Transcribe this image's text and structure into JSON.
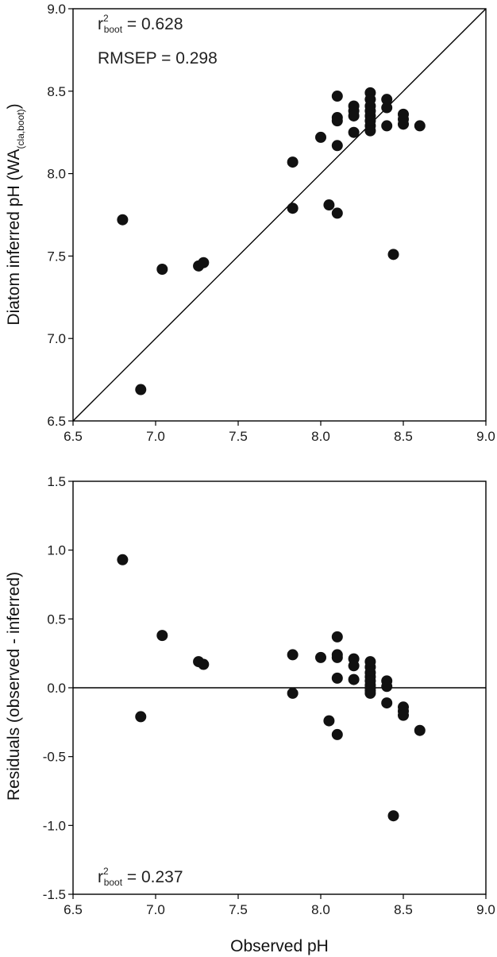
{
  "chart_data": [
    {
      "type": "scatter",
      "xlabel": "",
      "ylabel": "Diatom inferred pH (WA",
      "ylabel_subscript": "(cla,boot)",
      "ylabel_close": ")",
      "xlim": [
        6.5,
        9.0
      ],
      "ylim": [
        6.5,
        9.0
      ],
      "xticks": [
        "6.5",
        "7.0",
        "7.5",
        "8.0",
        "8.5",
        "9.0"
      ],
      "yticks": [
        "6.5",
        "7.0",
        "7.5",
        "8.0",
        "8.5",
        "9.0"
      ],
      "reference_line": "1:1",
      "annotations": {
        "r2_prefix": "r",
        "r2_sup": "2",
        "r2_sub": "boot",
        "r2_value": " = 0.628",
        "rmsep": "RMSEP = 0.298"
      },
      "points": [
        {
          "x": 6.8,
          "y": 7.72
        },
        {
          "x": 6.91,
          "y": 6.69
        },
        {
          "x": 7.04,
          "y": 7.42
        },
        {
          "x": 7.26,
          "y": 7.44
        },
        {
          "x": 7.29,
          "y": 7.46
        },
        {
          "x": 7.83,
          "y": 8.07
        },
        {
          "x": 7.83,
          "y": 7.79
        },
        {
          "x": 8.0,
          "y": 8.22
        },
        {
          "x": 8.05,
          "y": 7.81
        },
        {
          "x": 8.1,
          "y": 8.47
        },
        {
          "x": 8.1,
          "y": 8.34
        },
        {
          "x": 8.1,
          "y": 8.32
        },
        {
          "x": 8.1,
          "y": 8.17
        },
        {
          "x": 8.1,
          "y": 7.76
        },
        {
          "x": 8.2,
          "y": 8.41
        },
        {
          "x": 8.2,
          "y": 8.38
        },
        {
          "x": 8.2,
          "y": 8.35
        },
        {
          "x": 8.2,
          "y": 8.25
        },
        {
          "x": 8.3,
          "y": 8.49
        },
        {
          "x": 8.3,
          "y": 8.45
        },
        {
          "x": 8.3,
          "y": 8.41
        },
        {
          "x": 8.3,
          "y": 8.38
        },
        {
          "x": 8.3,
          "y": 8.35
        },
        {
          "x": 8.3,
          "y": 8.32
        },
        {
          "x": 8.3,
          "y": 8.29
        },
        {
          "x": 8.3,
          "y": 8.26
        },
        {
          "x": 8.4,
          "y": 8.45
        },
        {
          "x": 8.4,
          "y": 8.4
        },
        {
          "x": 8.4,
          "y": 8.29
        },
        {
          "x": 8.44,
          "y": 7.51
        },
        {
          "x": 8.5,
          "y": 8.36
        },
        {
          "x": 8.5,
          "y": 8.33
        },
        {
          "x": 8.5,
          "y": 8.3
        },
        {
          "x": 8.6,
          "y": 8.29
        }
      ]
    },
    {
      "type": "scatter",
      "xlabel": "Observed pH",
      "ylabel": "Residuals (observed - inferred)",
      "xlim": [
        6.5,
        9.0
      ],
      "ylim": [
        -1.5,
        1.5
      ],
      "xticks": [
        "6.5",
        "7.0",
        "7.5",
        "8.0",
        "8.5",
        "9.0"
      ],
      "yticks": [
        "-1.5",
        "-1.0",
        "-0.5",
        "0.0",
        "0.5",
        "1.0",
        "1.5"
      ],
      "reference_line": "y = 0",
      "annotations": {
        "r2_prefix": "r",
        "r2_sup": "2",
        "r2_sub": "boot",
        "r2_value": " = 0.237"
      },
      "points": [
        {
          "x": 6.8,
          "y": 0.93
        },
        {
          "x": 6.91,
          "y": -0.21
        },
        {
          "x": 7.04,
          "y": 0.38
        },
        {
          "x": 7.26,
          "y": 0.19
        },
        {
          "x": 7.29,
          "y": 0.17
        },
        {
          "x": 7.83,
          "y": 0.24
        },
        {
          "x": 7.83,
          "y": -0.04
        },
        {
          "x": 8.0,
          "y": 0.22
        },
        {
          "x": 8.05,
          "y": -0.24
        },
        {
          "x": 8.1,
          "y": 0.37
        },
        {
          "x": 8.1,
          "y": 0.24
        },
        {
          "x": 8.1,
          "y": 0.22
        },
        {
          "x": 8.1,
          "y": 0.07
        },
        {
          "x": 8.1,
          "y": -0.34
        },
        {
          "x": 8.2,
          "y": 0.21
        },
        {
          "x": 8.2,
          "y": 0.16
        },
        {
          "x": 8.2,
          "y": 0.06
        },
        {
          "x": 8.3,
          "y": 0.19
        },
        {
          "x": 8.3,
          "y": 0.15
        },
        {
          "x": 8.3,
          "y": 0.11
        },
        {
          "x": 8.3,
          "y": 0.08
        },
        {
          "x": 8.3,
          "y": 0.05
        },
        {
          "x": 8.3,
          "y": 0.02
        },
        {
          "x": 8.3,
          "y": 0.0
        },
        {
          "x": 8.3,
          "y": -0.02
        },
        {
          "x": 8.3,
          "y": -0.04
        },
        {
          "x": 8.4,
          "y": 0.05
        },
        {
          "x": 8.4,
          "y": 0.01
        },
        {
          "x": 8.4,
          "y": -0.11
        },
        {
          "x": 8.44,
          "y": -0.93
        },
        {
          "x": 8.5,
          "y": -0.14
        },
        {
          "x": 8.5,
          "y": -0.17
        },
        {
          "x": 8.5,
          "y": -0.2
        },
        {
          "x": 8.6,
          "y": -0.31
        }
      ]
    }
  ],
  "style": {
    "marker_color": "#111111",
    "axis_color": "#000000"
  }
}
